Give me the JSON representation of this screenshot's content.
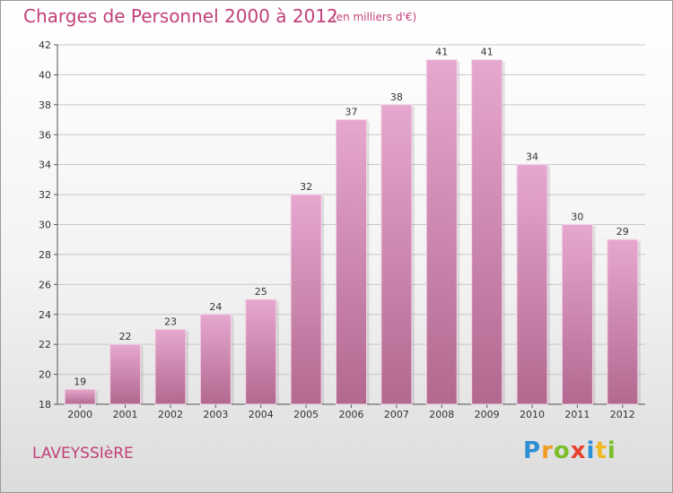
{
  "header": {
    "title": "Charges de Personnel 2000 à 2012",
    "subtitle": "(en milliers d'€)"
  },
  "footer": {
    "place": "LAVEYSSIèRE",
    "logo": "Proxiti"
  },
  "colors": {
    "title": "#c2407a",
    "bar_top": "#e6a8cf",
    "bar_bottom": "#b2688f",
    "grid": "#c8c8c8"
  },
  "chart_data": {
    "type": "bar",
    "categories": [
      "2000",
      "2001",
      "2002",
      "2003",
      "2004",
      "2005",
      "2006",
      "2007",
      "2008",
      "2009",
      "2010",
      "2011",
      "2012"
    ],
    "values": [
      19,
      22,
      23,
      24,
      25,
      32,
      37,
      38,
      41,
      41,
      34,
      30,
      29
    ],
    "ylim": [
      18,
      42
    ],
    "yticks": [
      18,
      20,
      22,
      24,
      26,
      28,
      30,
      32,
      34,
      36,
      38,
      40,
      42
    ],
    "grid": true,
    "data_labels": true
  }
}
